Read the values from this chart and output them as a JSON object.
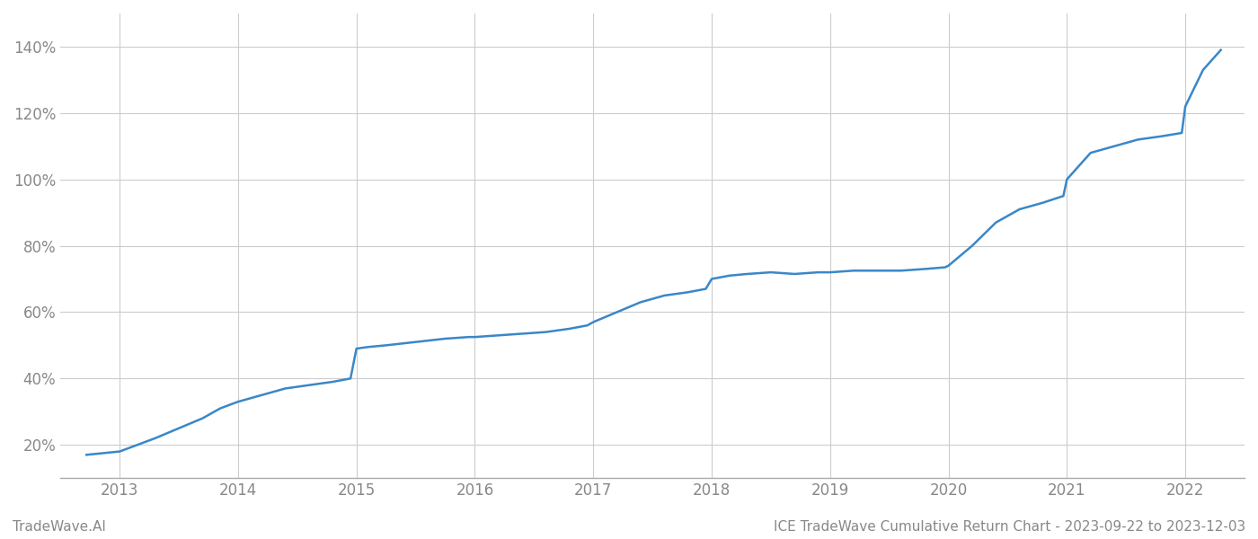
{
  "title": "",
  "footer_left": "TradeWave.AI",
  "footer_right": "ICE TradeWave Cumulative Return Chart - 2023-09-22 to 2023-12-03",
  "line_color": "#3a87c8",
  "background_color": "#ffffff",
  "grid_color": "#cccccc",
  "x_years": [
    2013,
    2014,
    2015,
    2016,
    2017,
    2018,
    2019,
    2020,
    2021,
    2022
  ],
  "x_values": [
    2012.72,
    2013.0,
    2013.15,
    2013.3,
    2013.5,
    2013.7,
    2013.85,
    2014.0,
    2014.2,
    2014.4,
    2014.6,
    2014.8,
    2014.95,
    2015.0,
    2015.1,
    2015.25,
    2015.5,
    2015.75,
    2015.95,
    2016.0,
    2016.2,
    2016.4,
    2016.6,
    2016.8,
    2016.95,
    2017.0,
    2017.2,
    2017.4,
    2017.6,
    2017.8,
    2017.95,
    2018.0,
    2018.15,
    2018.3,
    2018.5,
    2018.7,
    2018.9,
    2018.97,
    2019.0,
    2019.2,
    2019.4,
    2019.6,
    2019.8,
    2019.97,
    2020.0,
    2020.2,
    2020.4,
    2020.6,
    2020.8,
    2020.97,
    2021.0,
    2021.2,
    2021.4,
    2021.6,
    2021.8,
    2021.97,
    2022.0,
    2022.15,
    2022.3
  ],
  "y_values": [
    17,
    18,
    20,
    22,
    25,
    28,
    31,
    33,
    35,
    37,
    38,
    39,
    40,
    49,
    49.5,
    50,
    51,
    52,
    52.5,
    52.5,
    53,
    53.5,
    54,
    55,
    56,
    57,
    60,
    63,
    65,
    66,
    67,
    70,
    71,
    71.5,
    72,
    71.5,
    72,
    72,
    72,
    72.5,
    72.5,
    72.5,
    73,
    73.5,
    74,
    80,
    87,
    91,
    93,
    95,
    100,
    108,
    110,
    112,
    113,
    114,
    122,
    133,
    139
  ],
  "ylim": [
    10,
    150
  ],
  "yticks": [
    20,
    40,
    60,
    80,
    100,
    120,
    140
  ],
  "xlim": [
    2012.5,
    2022.5
  ],
  "line_width": 1.8
}
